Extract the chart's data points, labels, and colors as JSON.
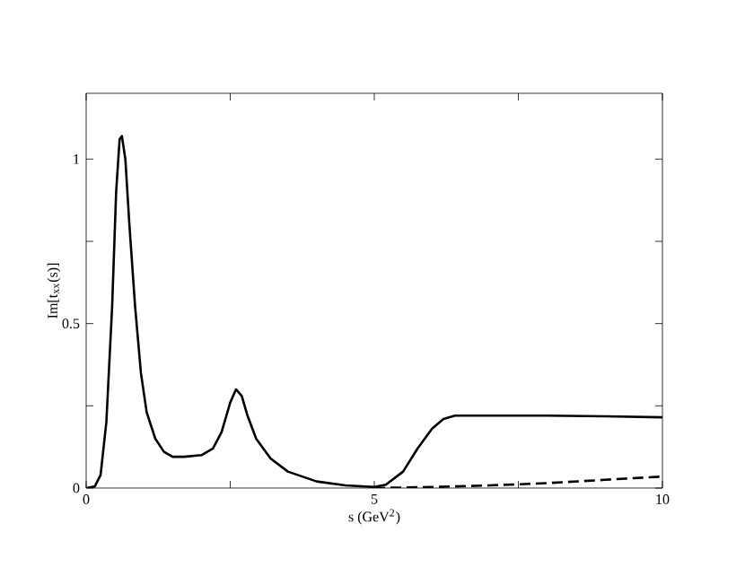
{
  "chart_data": {
    "type": "line",
    "xlabel": "s (GeV$^{2}$)",
    "ylabel": "Im[t$_{xx}$(s)]",
    "xlim": [
      0,
      10
    ],
    "ylim": [
      0,
      1.2
    ],
    "xticks": [
      0,
      {
        "value": 2.5,
        "label": null
      },
      5,
      {
        "value": 7.5,
        "label": null
      },
      10
    ],
    "yticks": [
      0,
      {
        "value": 0.25,
        "label": null
      },
      0.5,
      {
        "value": 0.75,
        "label": null
      },
      1
    ],
    "marker": "none",
    "series": [
      {
        "color": "#000000",
        "line_style": "solid",
        "x": [
          0,
          0.15,
          0.25,
          0.35,
          0.45,
          0.52,
          0.58,
          0.62,
          0.68,
          0.75,
          0.85,
          0.95,
          1.05,
          1.2,
          1.35,
          1.5,
          1.7,
          2.0,
          2.2,
          2.35,
          2.5,
          2.6,
          2.7,
          2.8,
          2.95,
          3.2,
          3.5,
          4.0,
          4.5,
          5.0,
          5.2,
          5.5,
          5.75,
          6.0,
          6.2,
          6.4,
          7,
          8,
          9,
          10
        ],
        "values": [
          0,
          0.005,
          0.04,
          0.2,
          0.55,
          0.9,
          1.06,
          1.07,
          1.0,
          0.8,
          0.55,
          0.35,
          0.23,
          0.15,
          0.11,
          0.095,
          0.095,
          0.1,
          0.12,
          0.17,
          0.26,
          0.3,
          0.28,
          0.22,
          0.15,
          0.09,
          0.05,
          0.02,
          0.008,
          0.003,
          0.01,
          0.05,
          0.12,
          0.18,
          0.21,
          0.22,
          0.22,
          0.22,
          0.218,
          0.215
        ]
      },
      {
        "color": "#000000",
        "line_style": "dashed",
        "x": [
          5,
          6,
          7,
          8,
          9,
          10
        ],
        "values": [
          0,
          0.003,
          0.008,
          0.015,
          0.025,
          0.035
        ]
      }
    ]
  }
}
